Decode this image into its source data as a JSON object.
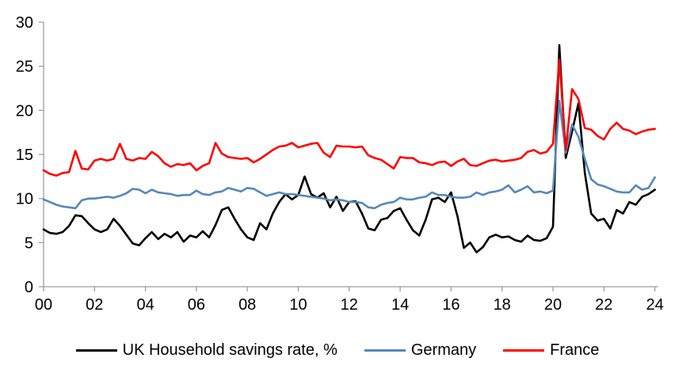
{
  "chart_data": {
    "type": "line",
    "title": "",
    "xlabel": "",
    "ylabel": "",
    "grid": false,
    "legend_position": "bottom",
    "x_start_year": 2000,
    "points_per_year": 4,
    "x_axis": {
      "tick_interval_years": 2,
      "tick_labels": [
        "00",
        "02",
        "04",
        "06",
        "08",
        "10",
        "12",
        "14",
        "16",
        "18",
        "20",
        "22",
        "24"
      ]
    },
    "y_axis": {
      "min": 0,
      "max": 30,
      "ticks": [
        0,
        5,
        10,
        15,
        20,
        25,
        30
      ],
      "tick_labels": [
        "0",
        "5",
        "10",
        "15",
        "20",
        "25",
        "30"
      ]
    },
    "axis_color": "#9e9e9e",
    "series": [
      {
        "name": "UK Household savings rate, %",
        "color": "#000000",
        "values": [
          6.5,
          6.1,
          6.0,
          6.2,
          6.9,
          8.1,
          8.0,
          7.2,
          6.5,
          6.2,
          6.5,
          7.7,
          6.9,
          5.9,
          4.9,
          4.7,
          5.5,
          6.2,
          5.4,
          6.0,
          5.6,
          6.2,
          5.1,
          5.8,
          5.6,
          6.3,
          5.6,
          7.0,
          8.7,
          9.0,
          7.7,
          6.5,
          5.6,
          5.3,
          7.2,
          6.5,
          8.3,
          9.6,
          10.5,
          9.9,
          10.4,
          12.5,
          10.5,
          10.1,
          10.6,
          9.0,
          10.2,
          8.6,
          9.6,
          9.7,
          8.3,
          6.6,
          6.4,
          7.6,
          7.8,
          8.6,
          8.9,
          7.6,
          6.4,
          5.8,
          7.6,
          9.9,
          10.1,
          9.6,
          10.7,
          8.0,
          4.4,
          5.0,
          3.9,
          4.5,
          5.6,
          5.9,
          5.6,
          5.7,
          5.3,
          5.1,
          5.8,
          5.3,
          5.2,
          5.5,
          6.8,
          27.4,
          14.6,
          17.6,
          20.8,
          12.9,
          8.3,
          7.5,
          7.7,
          6.6,
          8.7,
          8.3,
          9.6,
          9.3,
          10.2,
          10.5,
          11.0
        ]
      },
      {
        "name": "Germany",
        "color": "#5588BB",
        "values": [
          9.9,
          9.6,
          9.3,
          9.1,
          9.0,
          8.9,
          9.8,
          10.0,
          10.0,
          10.1,
          10.2,
          10.1,
          10.3,
          10.6,
          11.1,
          11.0,
          10.6,
          11.0,
          10.7,
          10.6,
          10.5,
          10.3,
          10.4,
          10.4,
          10.9,
          10.5,
          10.4,
          10.7,
          10.8,
          11.2,
          11.0,
          10.8,
          11.2,
          11.1,
          10.7,
          10.3,
          10.5,
          10.7,
          10.5,
          10.5,
          10.4,
          10.3,
          10.2,
          10.1,
          10.0,
          9.8,
          9.9,
          9.8,
          9.6,
          9.6,
          9.5,
          9.0,
          8.9,
          9.3,
          9.5,
          9.6,
          10.1,
          9.9,
          9.9,
          10.1,
          10.2,
          10.7,
          10.4,
          10.4,
          10.2,
          10.1,
          10.1,
          10.2,
          10.7,
          10.4,
          10.7,
          10.8,
          11.0,
          11.5,
          10.7,
          11.0,
          11.4,
          10.7,
          10.8,
          10.6,
          10.9,
          21.1,
          15.2,
          18.4,
          17.0,
          14.5,
          12.2,
          11.6,
          11.4,
          11.1,
          10.8,
          10.7,
          10.7,
          11.5,
          11.0,
          11.2,
          12.4
        ]
      },
      {
        "name": "France",
        "color": "#FF0000",
        "values": [
          13.2,
          12.8,
          12.6,
          12.9,
          13.0,
          15.4,
          13.4,
          13.3,
          14.3,
          14.5,
          14.3,
          14.5,
          16.2,
          14.5,
          14.3,
          14.6,
          14.5,
          15.3,
          14.8,
          14.0,
          13.6,
          13.9,
          13.8,
          14.0,
          13.2,
          13.7,
          14.0,
          16.3,
          15.1,
          14.7,
          14.6,
          14.5,
          14.6,
          14.1,
          14.5,
          15.0,
          15.5,
          15.9,
          16.0,
          16.3,
          15.8,
          16.0,
          16.2,
          16.3,
          15.2,
          14.7,
          16.0,
          15.9,
          15.9,
          15.8,
          15.9,
          14.9,
          14.6,
          14.4,
          13.9,
          13.4,
          14.7,
          14.6,
          14.6,
          14.1,
          14.0,
          13.8,
          14.1,
          14.2,
          13.7,
          14.2,
          14.5,
          13.8,
          13.7,
          14.0,
          14.3,
          14.4,
          14.2,
          14.3,
          14.4,
          14.6,
          15.3,
          15.5,
          15.1,
          15.3,
          16.2,
          25.8,
          15.5,
          22.4,
          21.3,
          18.0,
          17.8,
          17.1,
          16.7,
          17.9,
          18.6,
          17.9,
          17.7,
          17.3,
          17.6,
          17.8,
          17.9
        ]
      }
    ]
  }
}
